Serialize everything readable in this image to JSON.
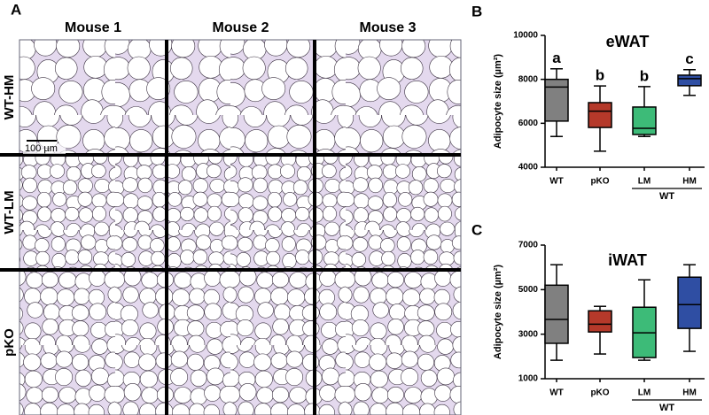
{
  "histology": {
    "panel": "A",
    "columns": [
      "Mouse 1",
      "Mouse 2",
      "Mouse 3"
    ],
    "rows": [
      "WT-HM",
      "WT-LM",
      "pKO"
    ],
    "scale_bar": "100 µm"
  },
  "chart_data": [
    {
      "type": "box",
      "panel": "B",
      "title": "eWAT",
      "ylabel": "Adipocyte size (µm²)",
      "categories": [
        "WT",
        "pKO",
        "LM",
        "HM"
      ],
      "colors": [
        "#808080",
        "#b5392a",
        "#3dbb78",
        "#2f4ea3"
      ],
      "boxes": [
        {
          "min": 5400,
          "q1": 6100,
          "median": 7650,
          "q3": 8000,
          "max": 8480
        },
        {
          "min": 4730,
          "q1": 5810,
          "median": 6550,
          "q3": 6940,
          "max": 7700
        },
        {
          "min": 5400,
          "q1": 5490,
          "median": 5770,
          "q3": 6740,
          "max": 7670
        },
        {
          "min": 7270,
          "q1": 7710,
          "median": 8030,
          "q3": 8190,
          "max": 8440
        }
      ],
      "annotations": [
        "a",
        "b",
        "b",
        "c"
      ],
      "group_label": "WT",
      "group_span": [
        "LM",
        "HM"
      ],
      "ylim": [
        4000,
        10000
      ],
      "yticks": [
        4000,
        6000,
        8000,
        10000
      ]
    },
    {
      "type": "box",
      "panel": "C",
      "title": "iWAT",
      "ylabel": "Adipocyte size (µm²)",
      "categories": [
        "WT",
        "pKO",
        "LM",
        "HM"
      ],
      "colors": [
        "#808080",
        "#b5392a",
        "#3dbb78",
        "#2f4ea3"
      ],
      "boxes": [
        {
          "min": 1830,
          "q1": 2590,
          "median": 3660,
          "q3": 5200,
          "max": 6120
        },
        {
          "min": 2110,
          "q1": 3100,
          "median": 3450,
          "q3": 4050,
          "max": 4250
        },
        {
          "min": 1830,
          "q1": 1950,
          "median": 3060,
          "q3": 4210,
          "max": 5440
        },
        {
          "min": 2230,
          "q1": 3260,
          "median": 4330,
          "q3": 5560,
          "max": 6120
        }
      ],
      "group_label": "WT",
      "group_span": [
        "LM",
        "HM"
      ],
      "ylim": [
        1000,
        7000
      ],
      "yticks": [
        1000,
        3000,
        5000,
        7000
      ]
    }
  ]
}
